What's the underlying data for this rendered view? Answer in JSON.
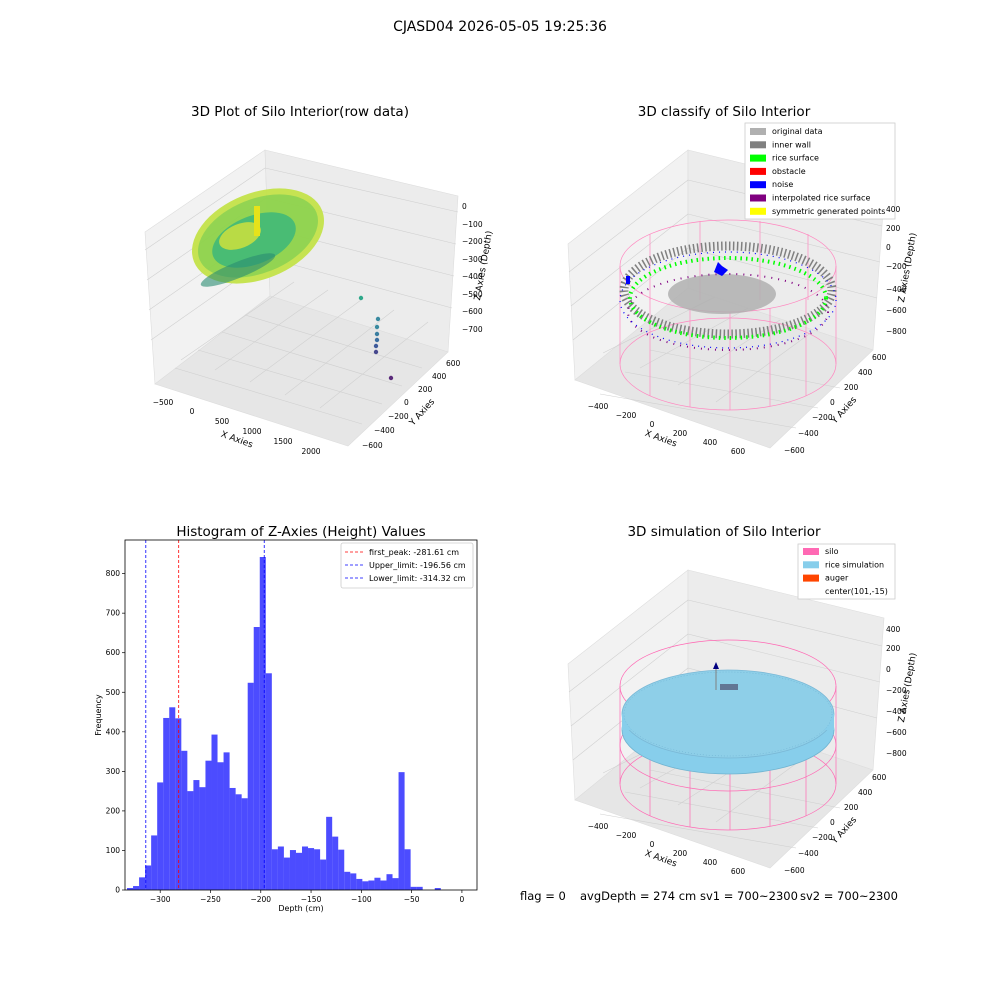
{
  "figure": {
    "suptitle": "CJASD04 2026-05-05 19:25:36",
    "status_line": {
      "flag": "flag = 0",
      "avg_depth": "avgDepth = 274 cm",
      "sv1": "sv1 = 700~2300",
      "sv2": "sv2 = 700~2300"
    }
  },
  "panels": {
    "raw": {
      "title": "3D Plot of Silo Interior(row data)",
      "xlabel": "X Axies",
      "ylabel": "Y Axies",
      "zlabel": "Z Axies (Depth)",
      "xticks": [
        "−500",
        "0",
        "500",
        "1000",
        "1500",
        "2000"
      ],
      "yticks": [
        "600",
        "400",
        "200",
        "0",
        "−200",
        "−400",
        "−600"
      ],
      "zticks": [
        "0",
        "−100",
        "−200",
        "−300",
        "−400",
        "−500",
        "−600",
        "−700"
      ]
    },
    "classify": {
      "title": "3D classify of Silo Interior",
      "xlabel": "X Axies",
      "ylabel": "Y Axies",
      "zlabel": "Z Axies (Depth)",
      "xticks": [
        "−400",
        "−200",
        "0",
        "200",
        "400",
        "600"
      ],
      "yticks": [
        "600",
        "400",
        "200",
        "0",
        "−200",
        "−400",
        "−600"
      ],
      "zticks": [
        "400",
        "200",
        "0",
        "−200",
        "−400",
        "−600",
        "−800"
      ],
      "legend": [
        {
          "label": "original data",
          "color": "#b0b0b0"
        },
        {
          "label": "inner wall",
          "color": "#808080"
        },
        {
          "label": "rice surface",
          "color": "#00ff00"
        },
        {
          "label": "obstacle",
          "color": "#ff0000"
        },
        {
          "label": "noise",
          "color": "#0000ff"
        },
        {
          "label": "interpolated rice surface",
          "color": "#800080"
        },
        {
          "label": "symmetric generated points",
          "color": "#ffff00"
        }
      ]
    },
    "simulation": {
      "title": "3D simulation of Silo Interior",
      "xlabel": "X Axies",
      "ylabel": "Y Axies",
      "zlabel": "Z Axies (Depth)",
      "xticks": [
        "−400",
        "−200",
        "0",
        "200",
        "400",
        "600"
      ],
      "yticks": [
        "600",
        "400",
        "200",
        "0",
        "−200",
        "−400",
        "−600"
      ],
      "zticks": [
        "400",
        "200",
        "0",
        "−200",
        "−400",
        "−600",
        "−800"
      ],
      "legend": [
        {
          "label": "silo",
          "color": "#ff69b4"
        },
        {
          "label": "rice simulation",
          "color": "#87ceeb"
        },
        {
          "label": "auger",
          "color": "#ff4500"
        },
        {
          "label": "center(101,-15)",
          "color": ""
        }
      ]
    }
  },
  "chart_data": [
    {
      "type": "bar",
      "title": "Histogram of Z-Axies (Height) Values",
      "xlabel": "Depth (cm)",
      "ylabel": "Frequency",
      "bar_color": "#0000ff",
      "xlim": [
        -335,
        15
      ],
      "ylim": [
        0,
        885
      ],
      "xticks": [
        -300,
        -250,
        -200,
        -150,
        -100,
        -50,
        0
      ],
      "yticks": [
        0,
        100,
        200,
        300,
        400,
        500,
        600,
        700,
        800
      ],
      "bin_edges": [
        -333.0,
        -327.0,
        -321.0,
        -315.0,
        -309.0,
        -303.0,
        -297.0,
        -291.0,
        -285.0,
        -279.0,
        -273.0,
        -267.0,
        -261.0,
        -255.0,
        -249.0,
        -243.0,
        -237.0,
        -231.0,
        -225.0,
        -219.0,
        -213.0,
        -207.0,
        -201.0,
        -195.0,
        -189.0,
        -183.0,
        -177.0,
        -171.0,
        -165.0,
        -159.0,
        -153.0,
        -147.0,
        -141.0,
        -135.0,
        -129.0,
        -123.0,
        -117.0,
        -111.0,
        -105.0,
        -99.0,
        -93.0,
        -87.0,
        -81.0,
        -75.0,
        -69.0,
        -63.0,
        -57.0,
        -51.0,
        -45.0,
        -39.0,
        -33.0,
        -27.0,
        -21.0,
        -15.0,
        -9.0,
        -3.0,
        3.0
      ],
      "counts": [
        5,
        10,
        32,
        62,
        138,
        272,
        435,
        462,
        434,
        352,
        250,
        278,
        260,
        327,
        393,
        323,
        348,
        258,
        242,
        232,
        524,
        665,
        842,
        548,
        103,
        110,
        82,
        101,
        94,
        110,
        106,
        103,
        77,
        185,
        135,
        102,
        46,
        42,
        28,
        22,
        24,
        31,
        24,
        40,
        30,
        298,
        103,
        8,
        8,
        0,
        0,
        5,
        0,
        0,
        0,
        0
      ],
      "vlines": [
        {
          "x": -281.61,
          "label": "first_peak: -281.61 cm",
          "color": "#ff0000"
        },
        {
          "x": -196.56,
          "label": "Upper_limit: -196.56 cm",
          "color": "#0000ff"
        },
        {
          "x": -314.32,
          "label": "Lower_limit: -314.32 cm",
          "color": "#0000ff"
        }
      ],
      "legend_position": "upper right"
    }
  ]
}
